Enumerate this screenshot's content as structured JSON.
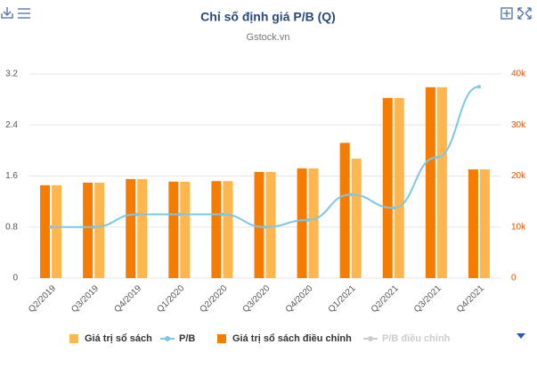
{
  "chart_data": {
    "type": "bar_line",
    "title": "Chỉ số định giá P/B (Q)",
    "subtitle": "Gstock.vn",
    "categories": [
      "Q2/2019",
      "Q3/2019",
      "Q4/2019",
      "Q1/2020",
      "Q2/2020",
      "Q3/2020",
      "Q4/2020",
      "Q1/2021",
      "Q2/2021",
      "Q3/2021",
      "Q4/2021"
    ],
    "series": [
      {
        "name": "Giá trị sổ sách",
        "color": "#ffb74d",
        "type": "bar",
        "axis": "y2",
        "values": [
          18200,
          18700,
          19400,
          18900,
          19000,
          20800,
          21500,
          23400,
          35300,
          37400,
          21300
        ]
      },
      {
        "name": "P/B",
        "color": "#7cc7e8",
        "type": "line",
        "axis": "y",
        "values": [
          0.8,
          0.8,
          1.0,
          1.0,
          1.0,
          0.8,
          0.91,
          1.31,
          1.1,
          1.89,
          3.0
        ]
      },
      {
        "name": "Giá trị sổ sách điều chỉnh",
        "color": "#f57c00",
        "type": "bar",
        "axis": "y2",
        "values": [
          18200,
          18700,
          19400,
          18900,
          19000,
          20800,
          21500,
          26500,
          35300,
          37400,
          21300
        ]
      },
      {
        "name": "P/B điều chỉnh",
        "color": "#cccccc",
        "type": "line",
        "axis": "y",
        "hidden": true,
        "values": [
          null,
          null,
          null,
          null,
          null,
          null,
          null,
          null,
          null,
          null,
          null
        ]
      }
    ],
    "ylim": [
      0,
      3.2
    ],
    "yticks": [
      0,
      0.8,
      1.6,
      2.4,
      3.2
    ],
    "y2lim": [
      0,
      40000
    ],
    "y2ticks": [
      0,
      {
        "value": 10000,
        "label": "10k"
      },
      {
        "value": 20000,
        "label": "20k"
      },
      {
        "value": 30000,
        "label": "30k"
      },
      {
        "value": 40000,
        "label": "40k"
      }
    ],
    "grid": true,
    "legend": "bottom"
  }
}
